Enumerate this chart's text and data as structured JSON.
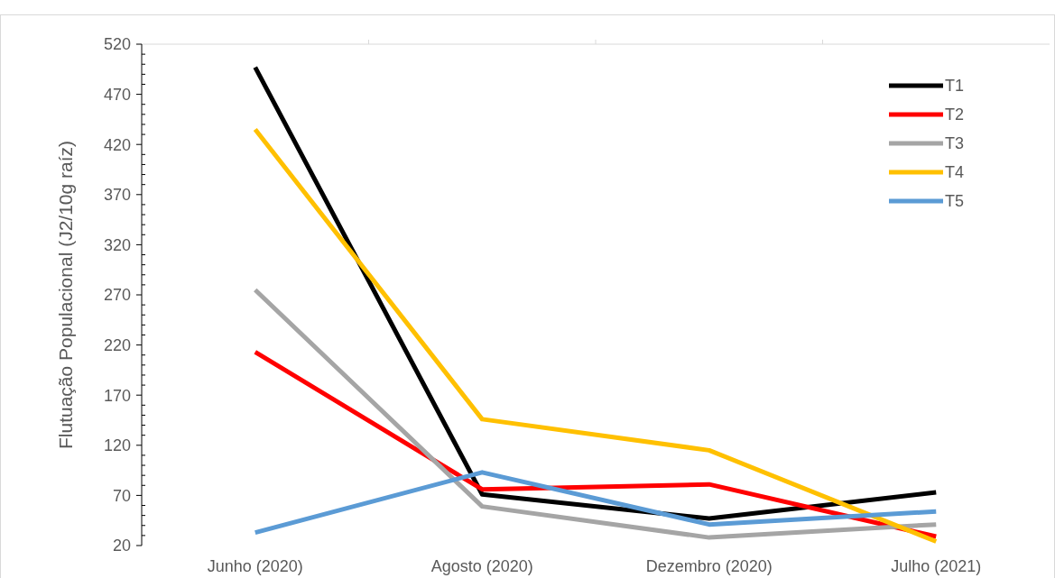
{
  "chart_data": {
    "type": "line",
    "ylabel": "Flutuação Populacional (J2/10g raíz)",
    "categories": [
      "Junho (2020)",
      "Agosto (2020)",
      "Dezembro (2020)",
      "Julho (2021)"
    ],
    "series": [
      {
        "name": "T1",
        "color": "#000000",
        "values": [
          497,
          71,
          47,
          73
        ]
      },
      {
        "name": "T2",
        "color": "#ff0000",
        "values": [
          213,
          76,
          81,
          29
        ]
      },
      {
        "name": "T3",
        "color": "#a5a5a5",
        "values": [
          275,
          59,
          28,
          41
        ]
      },
      {
        "name": "T4",
        "color": "#ffc000",
        "values": [
          435,
          146,
          115,
          24
        ]
      },
      {
        "name": "T5",
        "color": "#5b9bd5",
        "values": [
          33,
          93,
          41,
          54
        ]
      }
    ],
    "ylim": [
      20,
      520
    ],
    "yticks": [
      20,
      70,
      120,
      170,
      220,
      270,
      320,
      370,
      420,
      470,
      520
    ],
    "legend": "top right",
    "marker": "none",
    "line_style": "solid"
  }
}
